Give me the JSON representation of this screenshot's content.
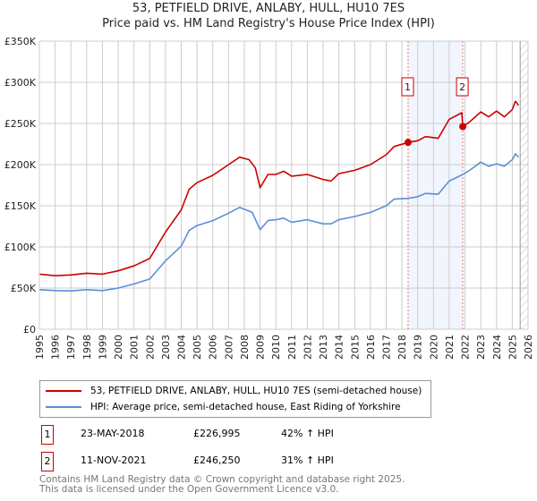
{
  "chart_data": {
    "type": "line",
    "title": "53, PETFIELD DRIVE, ANLABY, HULL, HU10 7ES",
    "subtitle": "Price paid vs. HM Land Registry's House Price Index (HPI)",
    "xlim": [
      1995,
      2026
    ],
    "ylim": [
      0,
      350000
    ],
    "yticks": [
      {
        "v": 0,
        "label": "£0"
      },
      {
        "v": 50000,
        "label": "£50K"
      },
      {
        "v": 100000,
        "label": "£100K"
      },
      {
        "v": 150000,
        "label": "£150K"
      },
      {
        "v": 200000,
        "label": "£200K"
      },
      {
        "v": 250000,
        "label": "£250K"
      },
      {
        "v": 300000,
        "label": "£300K"
      },
      {
        "v": 350000,
        "label": "£350K"
      }
    ],
    "xticks": [
      "1995",
      "1996",
      "1997",
      "1998",
      "1999",
      "2000",
      "2001",
      "2002",
      "2003",
      "2004",
      "2005",
      "2006",
      "2007",
      "2008",
      "2009",
      "2010",
      "2011",
      "2012",
      "2013",
      "2014",
      "2015",
      "2016",
      "2017",
      "2018",
      "2019",
      "2020",
      "2021",
      "2022",
      "2023",
      "2024",
      "2025",
      "2026"
    ],
    "grid": true,
    "forecast_start": 2025.5,
    "series": [
      {
        "name": "53, PETFIELD DRIVE, ANLABY, HULL, HU10 7ES (semi-detached house)",
        "color": "#cc0000",
        "x": [
          1995,
          1996,
          1997,
          1998,
          1999,
          2000,
          2001,
          2002,
          2003,
          2004,
          2004.5,
          2005,
          2006,
          2007,
          2007.7,
          2008.3,
          2008.7,
          2009,
          2009.5,
          2010,
          2010.5,
          2011,
          2012,
          2013,
          2013.5,
          2014,
          2015,
          2016,
          2017,
          2017.5,
          2018.39,
          2019,
          2019.5,
          2020.3,
          2021,
          2021.8,
          2021.86,
          2022.3,
          2023,
          2023.5,
          2024,
          2024.5,
          2025,
          2025.2,
          2025.4
        ],
        "y": [
          67000,
          65000,
          66000,
          68000,
          67000,
          71000,
          77000,
          86000,
          118000,
          145000,
          170000,
          178000,
          187000,
          200000,
          209000,
          206000,
          196000,
          172000,
          188000,
          188000,
          192000,
          186000,
          188000,
          182000,
          180000,
          189000,
          193000,
          200000,
          212000,
          222000,
          226995,
          229000,
          234000,
          232000,
          255000,
          263000,
          246250,
          252000,
          264000,
          258000,
          265000,
          258000,
          267000,
          277000,
          272000
        ]
      },
      {
        "name": "HPI: Average price, semi-detached house, East Riding of Yorkshire",
        "color": "#5b8fd6",
        "x": [
          1995,
          1996,
          1997,
          1998,
          1999,
          2000,
          2001,
          2002,
          2003,
          2004,
          2004.5,
          2005,
          2006,
          2007,
          2007.7,
          2008.5,
          2009,
          2009.5,
          2010,
          2010.5,
          2011,
          2012,
          2013,
          2013.5,
          2014,
          2015,
          2016,
          2017,
          2017.5,
          2018.39,
          2019,
          2019.5,
          2020.3,
          2021,
          2021.86,
          2022.3,
          2023,
          2023.5,
          2024,
          2024.5,
          2025,
          2025.2,
          2025.4
        ],
        "y": [
          48000,
          47000,
          46500,
          48000,
          47000,
          50000,
          55000,
          61000,
          83000,
          101000,
          120000,
          126000,
          132000,
          141000,
          148000,
          142000,
          121000,
          132000,
          133000,
          135000,
          130000,
          133000,
          128000,
          128000,
          133000,
          137000,
          142000,
          150000,
          158000,
          159000,
          161000,
          165000,
          164000,
          180000,
          188000,
          193000,
          203000,
          198000,
          201000,
          198000,
          206000,
          213000,
          209000
        ]
      }
    ],
    "sales": [
      {
        "label": "1",
        "x": 2018.39,
        "y": 226995,
        "date": "23-MAY-2018",
        "price": "£226,995",
        "hpi": "42% ↑ HPI"
      },
      {
        "label": "2",
        "x": 2021.86,
        "y": 246250,
        "date": "11-NOV-2021",
        "price": "£246,250",
        "hpi": "31% ↑ HPI"
      }
    ],
    "legend_position": "below"
  },
  "footer": {
    "line1": "Contains HM Land Registry data © Crown copyright and database right 2025.",
    "line2": "This data is licensed under the Open Government Licence v3.0."
  }
}
